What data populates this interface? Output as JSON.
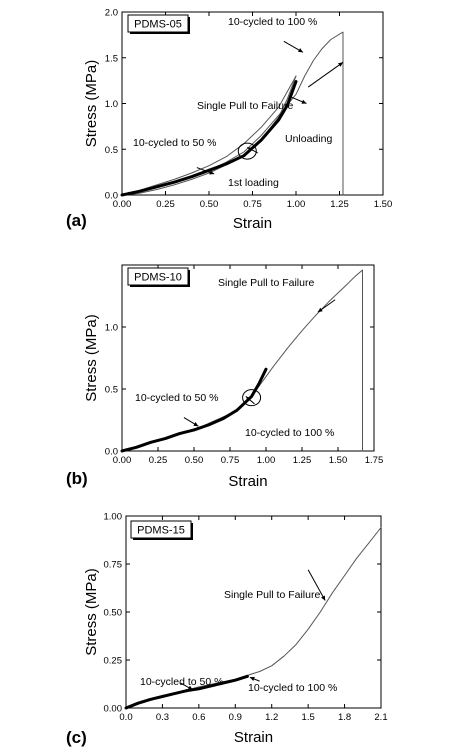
{
  "chart_data": [
    {
      "type": "line",
      "panel_label": "(a)",
      "legend_label": "PDMS-05",
      "xlabel": "Strain",
      "ylabel": "Stress (MPa)",
      "xlim": [
        0,
        1.5
      ],
      "ylim": [
        0,
        2.0
      ],
      "xticks": [
        0.0,
        0.25,
        0.5,
        0.75,
        1.0,
        1.25,
        1.5
      ],
      "xtick_labels": [
        "0.00",
        "0.25",
        "0.50",
        "0.75",
        "1.00",
        "1.25",
        "1.50"
      ],
      "yticks": [
        0,
        0.5,
        1.0,
        1.5,
        2.0
      ],
      "ytick_labels": [
        "0.0",
        "0.5",
        "1.0",
        "1.5",
        "2.0"
      ],
      "series": [
        {
          "name": "Single Pull to Failure",
          "style": "thin",
          "points": [
            [
              0,
              0
            ],
            [
              0.1,
              0.04
            ],
            [
              0.2,
              0.09
            ],
            [
              0.3,
              0.14
            ],
            [
              0.4,
              0.2
            ],
            [
              0.5,
              0.27
            ],
            [
              0.6,
              0.36
            ],
            [
              0.7,
              0.47
            ],
            [
              0.8,
              0.65
            ],
            [
              0.9,
              0.87
            ],
            [
              1.0,
              1.1
            ],
            [
              1.05,
              1.3
            ],
            [
              1.1,
              1.47
            ],
            [
              1.15,
              1.6
            ],
            [
              1.2,
              1.7
            ],
            [
              1.27,
              1.78
            ],
            [
              1.27,
              0
            ]
          ]
        },
        {
          "name": "1st loading",
          "style": "thin",
          "points": [
            [
              0,
              0
            ],
            [
              0.1,
              0.05
            ],
            [
              0.2,
              0.11
            ],
            [
              0.3,
              0.17
            ],
            [
              0.4,
              0.24
            ],
            [
              0.5,
              0.32
            ],
            [
              0.6,
              0.42
            ],
            [
              0.7,
              0.56
            ],
            [
              0.8,
              0.74
            ],
            [
              0.9,
              0.96
            ],
            [
              1.0,
              1.3
            ]
          ]
        },
        {
          "name": "Unloading",
          "style": "thin",
          "points": [
            [
              1.0,
              1.3
            ],
            [
              0.95,
              1.05
            ],
            [
              0.9,
              0.85
            ],
            [
              0.8,
              0.6
            ],
            [
              0.7,
              0.44
            ],
            [
              0.6,
              0.33
            ],
            [
              0.5,
              0.24
            ],
            [
              0.4,
              0.17
            ],
            [
              0.3,
              0.11
            ],
            [
              0.2,
              0.06
            ],
            [
              0.1,
              0.02
            ],
            [
              0.02,
              0
            ]
          ]
        },
        {
          "name": "10-cycled to 50 %",
          "style": "thick",
          "points": [
            [
              0.0,
              0.0
            ],
            [
              0.1,
              0.04
            ],
            [
              0.2,
              0.09
            ],
            [
              0.3,
              0.14
            ],
            [
              0.4,
              0.2
            ],
            [
              0.5,
              0.27
            ]
          ]
        },
        {
          "name": "10-cycled to 100 %",
          "style": "thick",
          "points": [
            [
              0.5,
              0.27
            ],
            [
              0.6,
              0.34
            ],
            [
              0.7,
              0.43
            ],
            [
              0.8,
              0.6
            ],
            [
              0.9,
              0.82
            ],
            [
              0.95,
              0.98
            ],
            [
              1.0,
              1.24
            ]
          ]
        }
      ],
      "annotations": [
        "Single Pull to Failure",
        "1st loading",
        "Unloading",
        "10-cycled to 50 %",
        "10-cycled to 100 %"
      ]
    },
    {
      "type": "line",
      "panel_label": "(b)",
      "legend_label": "PDMS-10",
      "xlabel": "Strain",
      "ylabel": "Stress (MPa)",
      "xlim": [
        0,
        1.75
      ],
      "ylim": [
        0,
        1.5
      ],
      "xticks": [
        0.0,
        0.25,
        0.5,
        0.75,
        1.0,
        1.25,
        1.5,
        1.75
      ],
      "xtick_labels": [
        "0.00",
        "0.25",
        "0.50",
        "0.75",
        "1.00",
        "1.25",
        "1.50",
        "1.75"
      ],
      "yticks": [
        0,
        0.5,
        1.0
      ],
      "ytick_labels": [
        "0.0",
        "0.5",
        "1.0"
      ],
      "series": [
        {
          "name": "Single Pull to Failure",
          "style": "thin",
          "points": [
            [
              0,
              0
            ],
            [
              0.25,
              0.08
            ],
            [
              0.5,
              0.17
            ],
            [
              0.75,
              0.3
            ],
            [
              0.85,
              0.38
            ],
            [
              0.95,
              0.52
            ],
            [
              1.05,
              0.68
            ],
            [
              1.15,
              0.83
            ],
            [
              1.25,
              0.97
            ],
            [
              1.35,
              1.1
            ],
            [
              1.45,
              1.22
            ],
            [
              1.55,
              1.33
            ],
            [
              1.62,
              1.41
            ],
            [
              1.67,
              1.46
            ],
            [
              1.67,
              0
            ]
          ]
        },
        {
          "name": "10-cycled to 50 %",
          "style": "thick",
          "points": [
            [
              0.0,
              0.0
            ],
            [
              0.1,
              0.03
            ],
            [
              0.2,
              0.07
            ],
            [
              0.3,
              0.1
            ],
            [
              0.4,
              0.14
            ],
            [
              0.5,
              0.17
            ]
          ]
        },
        {
          "name": "10-cycled to 100 %",
          "style": "thick",
          "points": [
            [
              0.5,
              0.17
            ],
            [
              0.6,
              0.21
            ],
            [
              0.7,
              0.26
            ],
            [
              0.8,
              0.33
            ],
            [
              0.9,
              0.44
            ],
            [
              0.95,
              0.54
            ],
            [
              1.0,
              0.66
            ]
          ]
        }
      ],
      "annotations": [
        "Single Pull to Failure",
        "10-cycled to 50 %",
        "10-cycled to 100 %"
      ]
    },
    {
      "type": "line",
      "panel_label": "(c)",
      "legend_label": "PDMS-15",
      "xlabel": "Strain",
      "ylabel": "Stress (MPa)",
      "xlim": [
        0,
        2.1
      ],
      "ylim": [
        0,
        1.0
      ],
      "xticks": [
        0.0,
        0.3,
        0.6,
        0.9,
        1.2,
        1.5,
        1.8,
        2.1
      ],
      "xtick_labels": [
        "0.0",
        "0.3",
        "0.6",
        "0.9",
        "1.2",
        "1.5",
        "1.8",
        "2.1"
      ],
      "yticks": [
        0,
        0.25,
        0.5,
        0.75,
        1.0
      ],
      "ytick_labels": [
        "0.00",
        "0.25",
        "0.50",
        "0.75",
        "1.00"
      ],
      "series": [
        {
          "name": "Single Pull to Failure",
          "style": "thin",
          "points": [
            [
              0,
              0
            ],
            [
              0.3,
              0.06
            ],
            [
              0.6,
              0.11
            ],
            [
              0.9,
              0.15
            ],
            [
              1.1,
              0.19
            ],
            [
              1.2,
              0.22
            ],
            [
              1.3,
              0.27
            ],
            [
              1.4,
              0.33
            ],
            [
              1.5,
              0.41
            ],
            [
              1.6,
              0.5
            ],
            [
              1.7,
              0.6
            ],
            [
              1.8,
              0.69
            ],
            [
              1.9,
              0.78
            ],
            [
              2.0,
              0.86
            ],
            [
              2.1,
              0.94
            ]
          ]
        },
        {
          "name": "10-cycled to 50 %",
          "style": "thick",
          "points": [
            [
              0.0,
              0.0
            ],
            [
              0.1,
              0.025
            ],
            [
              0.2,
              0.045
            ],
            [
              0.3,
              0.06
            ],
            [
              0.4,
              0.075
            ],
            [
              0.5,
              0.09
            ]
          ]
        },
        {
          "name": "10-cycled to 100 %",
          "style": "thick",
          "points": [
            [
              0.5,
              0.09
            ],
            [
              0.6,
              0.1
            ],
            [
              0.7,
              0.115
            ],
            [
              0.8,
              0.13
            ],
            [
              0.9,
              0.145
            ],
            [
              1.0,
              0.165
            ]
          ]
        }
      ],
      "annotations": [
        "Single Pull to Failure",
        "10-cycled to 50 %",
        "10-cycled to 100 %"
      ]
    }
  ]
}
